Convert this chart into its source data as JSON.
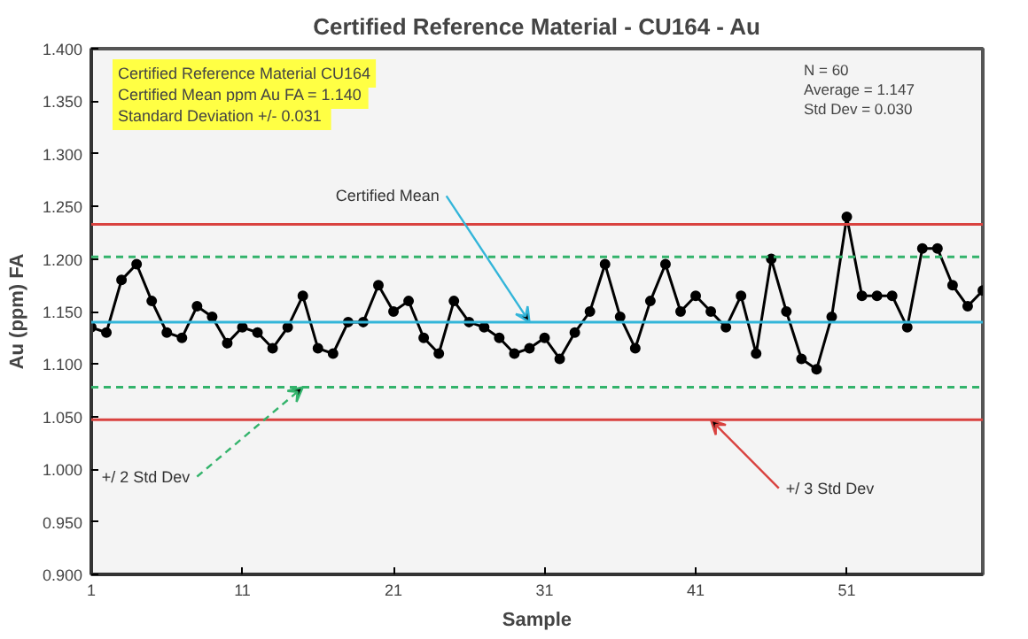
{
  "chart_data": {
    "type": "line",
    "title": "Certified Reference Material - CU164 - Au",
    "xlabel": "Sample",
    "ylabel": "Au (ppm) FA",
    "x": [
      1,
      2,
      3,
      4,
      5,
      6,
      7,
      8,
      9,
      10,
      11,
      12,
      13,
      14,
      15,
      16,
      17,
      18,
      19,
      20,
      21,
      22,
      23,
      24,
      25,
      26,
      27,
      28,
      29,
      30,
      31,
      32,
      33,
      34,
      35,
      36,
      37,
      38,
      39,
      40,
      41,
      42,
      43,
      44,
      45,
      46,
      47,
      48,
      49,
      50,
      51,
      52,
      53,
      54,
      55,
      56,
      57,
      58,
      59,
      60
    ],
    "series": [
      {
        "color": "#000000",
        "values": [
          1.135,
          1.13,
          1.18,
          1.195,
          1.16,
          1.13,
          1.125,
          1.155,
          1.145,
          1.12,
          1.135,
          1.13,
          1.115,
          1.135,
          1.165,
          1.115,
          1.11,
          1.14,
          1.14,
          1.175,
          1.15,
          1.16,
          1.125,
          1.11,
          1.16,
          1.14,
          1.135,
          1.125,
          1.11,
          1.115,
          1.125,
          1.105,
          1.13,
          1.15,
          1.195,
          1.145,
          1.115,
          1.16,
          1.195,
          1.15,
          1.165,
          1.15,
          1.135,
          1.165,
          1.11,
          1.2,
          1.15,
          1.105,
          1.095,
          1.145,
          1.24,
          1.165,
          1.165,
          1.165,
          1.135,
          1.21,
          1.21,
          1.175,
          1.155,
          1.17
        ]
      }
    ],
    "marker": "circle",
    "line_style": "solid",
    "grid": false,
    "xlim": [
      1,
      60
    ],
    "xticks": [
      1,
      11,
      21,
      31,
      41,
      51
    ],
    "ylim": [
      0.9,
      1.4
    ],
    "yticks": [
      {
        "value": 0.9,
        "label": "0.900"
      },
      {
        "value": 0.95,
        "label": "0.950"
      },
      {
        "value": 1.0,
        "label": "1.000"
      },
      {
        "value": 1.05,
        "label": "1.050"
      },
      {
        "value": 1.1,
        "label": "1.100"
      },
      {
        "value": 1.15,
        "label": "1.150"
      },
      {
        "value": 1.2,
        "label": "1.200"
      },
      {
        "value": 1.25,
        "label": "1.250"
      },
      {
        "value": 1.3,
        "label": "1.300"
      },
      {
        "value": 1.35,
        "label": "1.350"
      },
      {
        "value": 1.4,
        "label": "1.400"
      }
    ],
    "ref_lines": [
      {
        "axis": "y",
        "value": 1.14,
        "color": "#33b5d9",
        "line_style": "solid"
      },
      {
        "axis": "y",
        "value": 1.202,
        "color": "#33b36b",
        "line_style": "dashed"
      },
      {
        "axis": "y",
        "value": 1.078,
        "color": "#33b36b",
        "line_style": "dashed"
      },
      {
        "axis": "y",
        "value": 1.233,
        "color": "#d9423f",
        "line_style": "solid"
      },
      {
        "axis": "y",
        "value": 1.047,
        "color": "#d9423f",
        "line_style": "solid"
      }
    ],
    "annotations": [
      "Certified Reference Material CU164",
      "Certified Mean ppm Au FA = 1.140",
      "Standard Deviation  +/- 0.031",
      "N = 60",
      "Average = 1.147",
      "Std Dev = 0.030",
      {
        "text": "Certified Mean",
        "x": 30,
        "y": 1.14
      },
      {
        "text": "+/ 2 Std Dev",
        "x": 15,
        "y": 1.078
      },
      {
        "text": "+/ 3 Std Dev",
        "x": 42,
        "y": 1.047
      }
    ]
  }
}
